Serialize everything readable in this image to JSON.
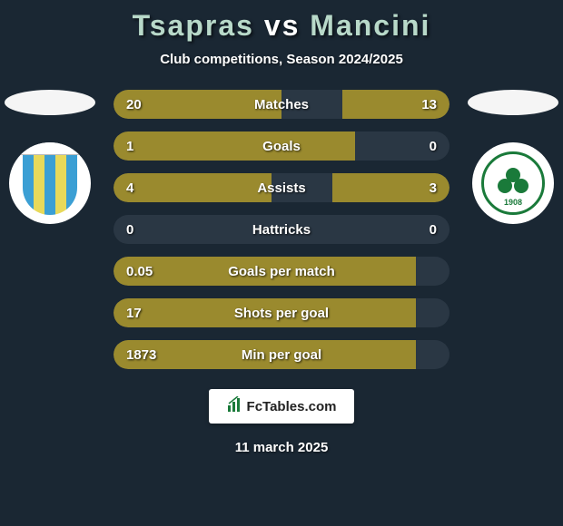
{
  "title": {
    "player1": "Tsapras",
    "vs": "vs",
    "player2": "Mancini"
  },
  "subtitle": "Club competitions, Season 2024/2025",
  "colors": {
    "bar_left": "#9a8a2e",
    "bar_right": "#9a8a2e",
    "bar_bg": "#2a3744",
    "page_bg": "#1a2733"
  },
  "badges": {
    "left_year_text": "",
    "right_year": "1908"
  },
  "stats": [
    {
      "label": "Matches",
      "left_val": "20",
      "right_val": "13",
      "left_pct": 50,
      "right_pct": 32
    },
    {
      "label": "Goals",
      "left_val": "1",
      "right_val": "0",
      "left_pct": 72,
      "right_pct": 0
    },
    {
      "label": "Assists",
      "left_val": "4",
      "right_val": "3",
      "left_pct": 47,
      "right_pct": 35
    },
    {
      "label": "Hattricks",
      "left_val": "0",
      "right_val": "0",
      "left_pct": 0,
      "right_pct": 0
    },
    {
      "label": "Goals per match",
      "left_val": "0.05",
      "right_val": "",
      "left_pct": 90,
      "right_pct": 0
    },
    {
      "label": "Shots per goal",
      "left_val": "17",
      "right_val": "",
      "left_pct": 90,
      "right_pct": 0
    },
    {
      "label": "Min per goal",
      "left_val": "1873",
      "right_val": "",
      "left_pct": 90,
      "right_pct": 0
    }
  ],
  "footer": {
    "site_name": "FcTables.com"
  },
  "date": "11 march 2025"
}
